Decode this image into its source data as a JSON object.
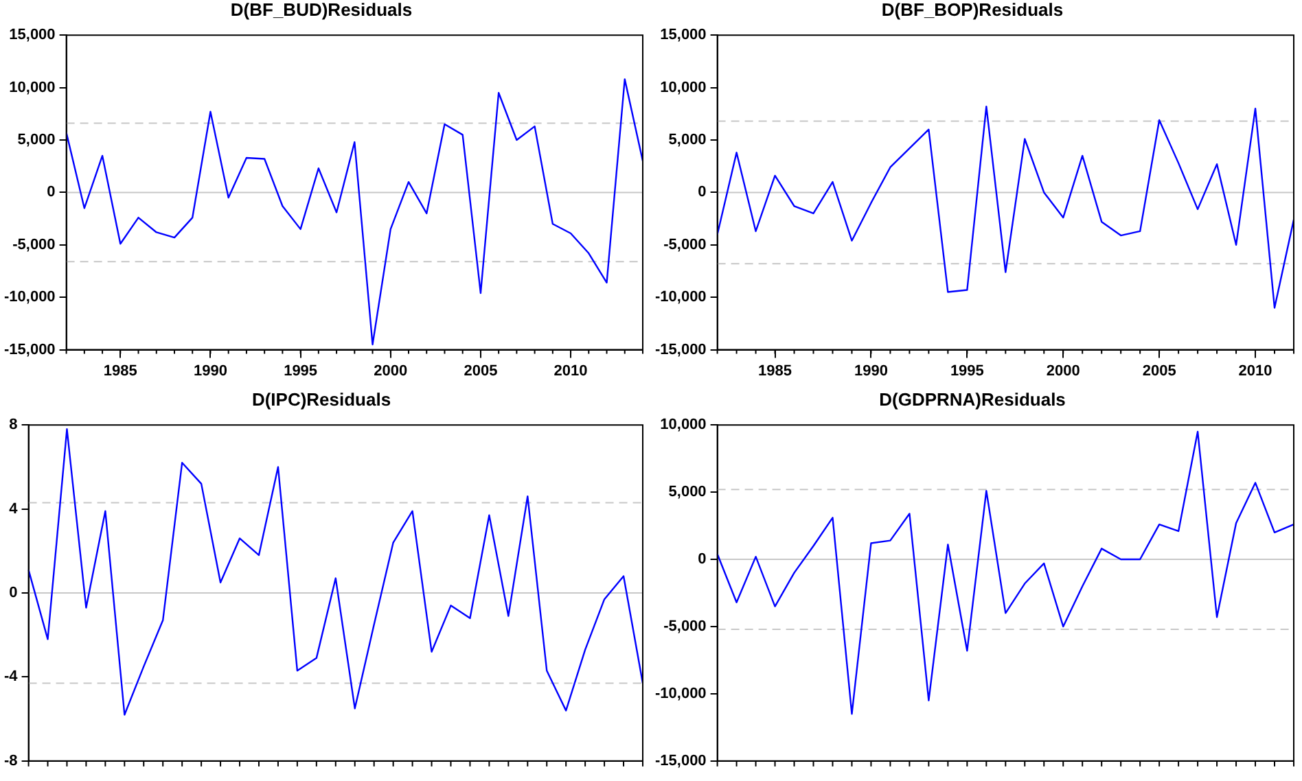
{
  "chart_data": [
    {
      "type": "line",
      "title": "D(BF_BUD)Residuals",
      "x": [
        1982,
        1983,
        1984,
        1985,
        1986,
        1987,
        1988,
        1989,
        1990,
        1991,
        1992,
        1993,
        1994,
        1995,
        1996,
        1997,
        1998,
        1999,
        2000,
        2001,
        2002,
        2003,
        2004,
        2005,
        2006,
        2007,
        2008,
        2009,
        2010,
        2011,
        2012,
        2013,
        2014
      ],
      "series": [
        {
          "color": "#0000ff",
          "values": [
            5700,
            -1500,
            3500,
            -4900,
            -2400,
            -3800,
            -4300,
            -2400,
            7700,
            -500,
            3300,
            3200,
            -1300,
            -3500,
            2300,
            -1900,
            4800,
            -14500,
            -3500,
            1000,
            -2000,
            6500,
            5500,
            -9600,
            9500,
            5000,
            6300,
            -3000,
            -3900,
            -5800,
            -8600,
            10800,
            3000
          ]
        }
      ],
      "xlim": [
        1982,
        2014
      ],
      "xticks": [
        1985,
        1990,
        1995,
        2000,
        2005,
        2010
      ],
      "ylim": [
        -15000,
        15000
      ],
      "yticks": [
        {
          "value": -15000,
          "label": "-15,000"
        },
        {
          "value": -10000,
          "label": "-10,000"
        },
        {
          "value": -5000,
          "label": "-5,000"
        },
        0,
        {
          "value": 5000,
          "label": "5,000"
        },
        {
          "value": 10000,
          "label": "10,000"
        },
        {
          "value": 15000,
          "label": "15,000"
        }
      ],
      "ref_lines": [
        {
          "axis": "y",
          "value": 0,
          "color": "#c8c8c8",
          "line_style": "solid"
        },
        {
          "axis": "y",
          "value": 6600,
          "color": "#c8c8c8",
          "line_style": "dashed"
        },
        {
          "axis": "y",
          "value": -6600,
          "color": "#c8c8c8",
          "line_style": "dashed"
        }
      ],
      "grid": false
    },
    {
      "type": "line",
      "title": "D(BF_BOP)Residuals",
      "x": [
        1982,
        1983,
        1984,
        1985,
        1986,
        1987,
        1988,
        1989,
        1990,
        1991,
        1992,
        1993,
        1994,
        1995,
        1996,
        1997,
        1998,
        1999,
        2000,
        2001,
        2002,
        2003,
        2004,
        2005,
        2006,
        2007,
        2008,
        2009,
        2010,
        2011,
        2012
      ],
      "series": [
        {
          "color": "#0000ff",
          "values": [
            -4000,
            3800,
            -3700,
            1600,
            -1300,
            -2000,
            1000,
            -4600,
            -1000,
            2400,
            4200,
            6000,
            -9500,
            -9300,
            8200,
            -7600,
            5100,
            0,
            -2400,
            3500,
            -2800,
            -4100,
            -3700,
            6900,
            2800,
            -1600,
            2700,
            -5000,
            8000,
            -11000,
            -2600
          ]
        }
      ],
      "xlim": [
        1982,
        2012
      ],
      "xticks": [
        1985,
        1990,
        1995,
        2000,
        2005,
        2010
      ],
      "ylim": [
        -15000,
        15000
      ],
      "yticks": [
        {
          "value": -15000,
          "label": "-15,000"
        },
        {
          "value": -10000,
          "label": "-10,000"
        },
        {
          "value": -5000,
          "label": "-5,000"
        },
        0,
        {
          "value": 5000,
          "label": "5,000"
        },
        {
          "value": 10000,
          "label": "10,000"
        },
        {
          "value": 15000,
          "label": "15,000"
        }
      ],
      "ref_lines": [
        {
          "axis": "y",
          "value": 0,
          "color": "#c8c8c8",
          "line_style": "solid"
        },
        {
          "axis": "y",
          "value": 6800,
          "color": "#c8c8c8",
          "line_style": "dashed"
        },
        {
          "axis": "y",
          "value": -6800,
          "color": "#c8c8c8",
          "line_style": "dashed"
        }
      ],
      "grid": false
    },
    {
      "type": "line",
      "title": "D(IPC)Residuals",
      "categories": [
        null,
        null,
        null,
        null,
        null,
        null,
        null,
        null,
        null,
        null,
        null,
        null,
        null,
        null,
        null,
        null,
        null,
        null,
        null,
        null,
        null,
        null,
        null,
        null,
        null,
        null,
        null,
        null,
        null,
        null,
        null,
        null,
        null
      ],
      "series": [
        {
          "color": "#0000ff",
          "values": [
            1.1,
            -2.2,
            7.8,
            -0.7,
            3.9,
            -5.8,
            -3.5,
            -1.3,
            6.2,
            5.2,
            0.5,
            2.6,
            1.8,
            6.0,
            -3.7,
            -3.1,
            0.7,
            -5.5,
            -1.5,
            2.4,
            3.9,
            -2.8,
            -0.6,
            -1.2,
            3.7,
            -1.1,
            4.6,
            -3.7,
            -5.6,
            -2.7,
            -0.3,
            0.8,
            -4.3
          ]
        }
      ],
      "ylim": [
        -8,
        8
      ],
      "yticks": [
        -8,
        -4,
        0,
        4,
        8
      ],
      "tick_labels": "y",
      "ref_lines": [
        {
          "axis": "y",
          "value": 0,
          "color": "#c8c8c8",
          "line_style": "solid"
        },
        {
          "axis": "y",
          "value": 4.3,
          "color": "#c8c8c8",
          "line_style": "dashed"
        },
        {
          "axis": "y",
          "value": -4.3,
          "color": "#c8c8c8",
          "line_style": "dashed"
        }
      ],
      "grid": false
    },
    {
      "type": "line",
      "title": "D(GDPRNA)Residuals",
      "categories": [
        null,
        null,
        null,
        null,
        null,
        null,
        null,
        null,
        null,
        null,
        null,
        null,
        null,
        null,
        null,
        null,
        null,
        null,
        null,
        null,
        null,
        null,
        null,
        null,
        null,
        null,
        null,
        null,
        null,
        null,
        null
      ],
      "series": [
        {
          "color": "#0000ff",
          "values": [
            400,
            -3200,
            200,
            -3500,
            -1000,
            1000,
            3100,
            -11500,
            1200,
            1400,
            3400,
            -10500,
            1100,
            -6800,
            5100,
            -4000,
            -1800,
            -300,
            -5000,
            -2000,
            800,
            0,
            0,
            2600,
            2100,
            9500,
            -4300,
            2700,
            5700,
            2000,
            2600
          ]
        }
      ],
      "ylim": [
        -15000,
        10000
      ],
      "yticks": [
        {
          "value": -15000,
          "label": "-15,000"
        },
        {
          "value": -10000,
          "label": "-10,000"
        },
        {
          "value": -5000,
          "label": "-5,000"
        },
        0,
        {
          "value": 5000,
          "label": "5,000"
        },
        {
          "value": 10000,
          "label": "10,000"
        }
      ],
      "tick_labels": "y",
      "ref_lines": [
        {
          "axis": "y",
          "value": 0,
          "color": "#c8c8c8",
          "line_style": "solid"
        },
        {
          "axis": "y",
          "value": 5200,
          "color": "#c8c8c8",
          "line_style": "dashed"
        },
        {
          "axis": "y",
          "value": -5200,
          "color": "#c8c8c8",
          "line_style": "dashed"
        }
      ],
      "grid": false
    }
  ]
}
